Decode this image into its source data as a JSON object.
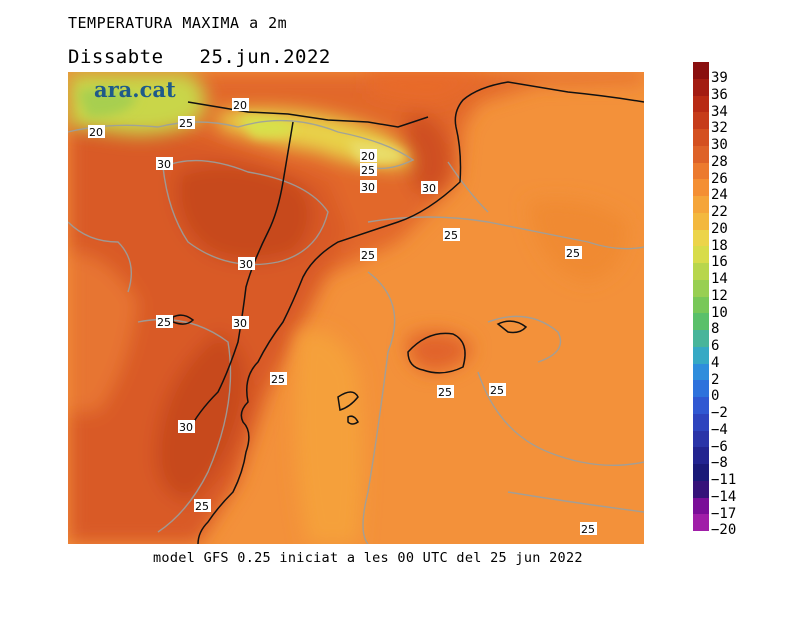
{
  "header": {
    "title": "TEMPERATURA MAXIMA a 2m",
    "day": "Dissabte",
    "date": "25.jun.2022"
  },
  "brand": {
    "name": "ara.cat"
  },
  "footer": {
    "text": "model GFS 0.25 iniciat a les 00 UTC del 25 jun 2022"
  },
  "legend": {
    "labels": [
      "39",
      "36",
      "34",
      "32",
      "30",
      "28",
      "26",
      "24",
      "22",
      "20",
      "18",
      "16",
      "14",
      "12",
      "10",
      "8",
      "6",
      "4",
      "2",
      "0",
      "−2",
      "−4",
      "−6",
      "−8",
      "−11",
      "−14",
      "−17",
      "−20"
    ],
    "colors": [
      "#8a0f0f",
      "#a31c12",
      "#b82a14",
      "#c63c1a",
      "#d45020",
      "#de6228",
      "#ec7a2e",
      "#f48f34",
      "#f5a53a",
      "#f3b83e",
      "#ecd44a",
      "#d8dc4a",
      "#b8d64c",
      "#98cf52",
      "#78c858",
      "#5ac06a",
      "#48b59a",
      "#36a9c4",
      "#2f8ddc",
      "#2e72dc",
      "#3058d2",
      "#2e44be",
      "#2a34a8",
      "#222490",
      "#1a1a78",
      "#36127a",
      "#7a0e98",
      "#a01ea8"
    ]
  },
  "contour_labels": [
    "20",
    "20",
    "25",
    "30",
    "20",
    "25",
    "30",
    "30",
    "25",
    "25",
    "25",
    "30",
    "25",
    "30",
    "25",
    "25",
    "25",
    "30",
    "25",
    "25"
  ]
}
